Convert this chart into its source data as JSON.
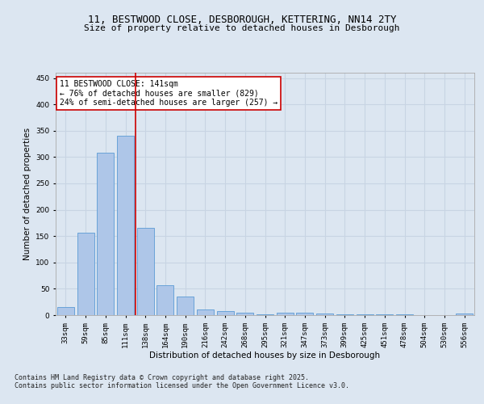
{
  "title_line1": "11, BESTWOOD CLOSE, DESBOROUGH, KETTERING, NN14 2TY",
  "title_line2": "Size of property relative to detached houses in Desborough",
  "xlabel": "Distribution of detached houses by size in Desborough",
  "ylabel": "Number of detached properties",
  "categories": [
    "33sqm",
    "59sqm",
    "85sqm",
    "111sqm",
    "138sqm",
    "164sqm",
    "190sqm",
    "216sqm",
    "242sqm",
    "268sqm",
    "295sqm",
    "321sqm",
    "347sqm",
    "373sqm",
    "399sqm",
    "425sqm",
    "451sqm",
    "478sqm",
    "504sqm",
    "530sqm",
    "556sqm"
  ],
  "values": [
    15,
    156,
    308,
    340,
    165,
    57,
    35,
    10,
    8,
    5,
    1,
    5,
    4,
    3,
    1,
    1,
    1,
    1,
    0,
    0,
    3
  ],
  "bar_color": "#aec6e8",
  "bar_edge_color": "#5b9bd5",
  "vline_color": "#cc0000",
  "annotation_text": "11 BESTWOOD CLOSE: 141sqm\n← 76% of detached houses are smaller (829)\n24% of semi-detached houses are larger (257) →",
  "annotation_box_color": "#ffffff",
  "annotation_box_edge": "#cc0000",
  "grid_color": "#c8d4e3",
  "background_color": "#dce6f1",
  "plot_bg_color": "#dce6f1",
  "ylim": [
    0,
    460
  ],
  "yticks": [
    0,
    50,
    100,
    150,
    200,
    250,
    300,
    350,
    400,
    450
  ],
  "footer": "Contains HM Land Registry data © Crown copyright and database right 2025.\nContains public sector information licensed under the Open Government Licence v3.0.",
  "title_fontsize": 9,
  "subtitle_fontsize": 8,
  "axis_fontsize": 7.5,
  "tick_fontsize": 6.5,
  "footer_fontsize": 6,
  "annot_fontsize": 7
}
